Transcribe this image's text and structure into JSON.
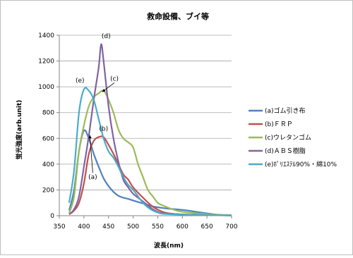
{
  "chart_data": {
    "type": "line",
    "title": "救命設備、ブイ等",
    "xlabel": "波長(nm)",
    "ylabel": "蛍光強度(arb.unit)",
    "xlim": [
      350,
      700
    ],
    "ylim": [
      0,
      1400
    ],
    "x_ticks": [
      350,
      400,
      450,
      500,
      550,
      600,
      650,
      700
    ],
    "y_ticks": [
      0,
      200,
      400,
      600,
      800,
      1000,
      1200,
      1400
    ],
    "grid": "horizontal",
    "legend_position": "right",
    "series": [
      {
        "name": "(a)ゴム引き布",
        "color": "#4f81bd",
        "points": [
          [
            370,
            40
          ],
          [
            380,
            200
          ],
          [
            390,
            500
          ],
          [
            400,
            660
          ],
          [
            410,
            600
          ],
          [
            420,
            480
          ],
          [
            430,
            380
          ],
          [
            440,
            290
          ],
          [
            450,
            230
          ],
          [
            460,
            185
          ],
          [
            470,
            155
          ],
          [
            480,
            140
          ],
          [
            490,
            130
          ],
          [
            500,
            118
          ],
          [
            520,
            95
          ],
          [
            540,
            72
          ],
          [
            560,
            60
          ],
          [
            580,
            52
          ],
          [
            600,
            45
          ],
          [
            620,
            35
          ],
          [
            650,
            18
          ],
          [
            680,
            5
          ],
          [
            700,
            2
          ]
        ]
      },
      {
        "name": "(b)ＦＲＰ",
        "color": "#c0504d",
        "points": [
          [
            370,
            10
          ],
          [
            380,
            40
          ],
          [
            390,
            100
          ],
          [
            400,
            250
          ],
          [
            410,
            480
          ],
          [
            420,
            580
          ],
          [
            430,
            610
          ],
          [
            440,
            610
          ],
          [
            450,
            550
          ],
          [
            460,
            480
          ],
          [
            470,
            400
          ],
          [
            480,
            320
          ],
          [
            490,
            280
          ],
          [
            500,
            220
          ],
          [
            520,
            140
          ],
          [
            540,
            70
          ],
          [
            560,
            30
          ],
          [
            580,
            15
          ],
          [
            600,
            10
          ],
          [
            650,
            5
          ],
          [
            700,
            2
          ]
        ]
      },
      {
        "name": "(c)ウレタンゴム",
        "color": "#9bbb59",
        "points": [
          [
            370,
            20
          ],
          [
            380,
            150
          ],
          [
            390,
            500
          ],
          [
            400,
            700
          ],
          [
            410,
            850
          ],
          [
            420,
            920
          ],
          [
            430,
            950
          ],
          [
            440,
            970
          ],
          [
            450,
            900
          ],
          [
            460,
            800
          ],
          [
            470,
            670
          ],
          [
            480,
            600
          ],
          [
            490,
            570
          ],
          [
            500,
            530
          ],
          [
            510,
            400
          ],
          [
            520,
            300
          ],
          [
            530,
            200
          ],
          [
            540,
            150
          ],
          [
            550,
            100
          ],
          [
            560,
            80
          ],
          [
            580,
            50
          ],
          [
            600,
            30
          ],
          [
            650,
            12
          ],
          [
            700,
            5
          ]
        ]
      },
      {
        "name": "(d)ＡＢＳ樹脂",
        "color": "#8064a2",
        "points": [
          [
            370,
            10
          ],
          [
            380,
            50
          ],
          [
            390,
            150
          ],
          [
            400,
            380
          ],
          [
            410,
            620
          ],
          [
            420,
            900
          ],
          [
            430,
            1150
          ],
          [
            435,
            1330
          ],
          [
            440,
            1200
          ],
          [
            450,
            850
          ],
          [
            460,
            600
          ],
          [
            470,
            420
          ],
          [
            480,
            280
          ],
          [
            490,
            220
          ],
          [
            500,
            170
          ],
          [
            510,
            140
          ],
          [
            520,
            110
          ],
          [
            530,
            80
          ],
          [
            540,
            50
          ],
          [
            550,
            30
          ],
          [
            560,
            20
          ],
          [
            600,
            10
          ],
          [
            650,
            5
          ],
          [
            700,
            2
          ]
        ]
      },
      {
        "name": "(e)ﾎﾟﾘｴｽﾃﾙ90%・綿10%",
        "color": "#4bacc6",
        "points": [
          [
            370,
            100
          ],
          [
            380,
            350
          ],
          [
            390,
            800
          ],
          [
            400,
            980
          ],
          [
            410,
            970
          ],
          [
            420,
            900
          ],
          [
            430,
            750
          ],
          [
            440,
            600
          ],
          [
            450,
            500
          ],
          [
            460,
            450
          ],
          [
            470,
            380
          ],
          [
            480,
            300
          ],
          [
            490,
            240
          ],
          [
            500,
            200
          ],
          [
            510,
            150
          ],
          [
            520,
            100
          ],
          [
            530,
            65
          ],
          [
            540,
            40
          ],
          [
            550,
            25
          ],
          [
            560,
            15
          ],
          [
            600,
            8
          ],
          [
            650,
            4
          ],
          [
            700,
            2
          ]
        ]
      }
    ],
    "annotations": [
      {
        "text": "(a)",
        "x": 418,
        "y": 300,
        "arrow_to": [
          412,
          625
        ]
      },
      {
        "text": "(b)",
        "x": 440,
        "y": 675
      },
      {
        "text": "(c)",
        "x": 462,
        "y": 1065,
        "arrow_to": [
          437,
          960
        ]
      },
      {
        "text": "(d)",
        "x": 445,
        "y": 1395
      },
      {
        "text": "(e)",
        "x": 392,
        "y": 1050
      }
    ]
  }
}
